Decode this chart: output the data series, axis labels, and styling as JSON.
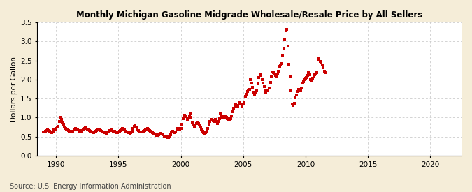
{
  "title": "Monthly Michigan Gasoline Midgrade Wholesale/Resale Price by All Sellers",
  "ylabel": "Dollars per Gallon",
  "source": "Source: U.S. Energy Information Administration",
  "bg_color": "#F5EDD8",
  "plot_bg_color": "#FFFFFF",
  "marker_color": "#CC0000",
  "grid_color": "#BBBBBB",
  "xlim": [
    1988.5,
    2022.5
  ],
  "ylim": [
    0.0,
    3.5
  ],
  "xticks": [
    1990,
    1995,
    2000,
    2005,
    2010,
    2015,
    2020
  ],
  "yticks": [
    0.0,
    0.5,
    1.0,
    1.5,
    2.0,
    2.5,
    3.0,
    3.5
  ],
  "data": [
    [
      1989.0,
      0.62
    ],
    [
      1989.08,
      0.63
    ],
    [
      1989.17,
      0.65
    ],
    [
      1989.25,
      0.67
    ],
    [
      1989.33,
      0.68
    ],
    [
      1989.42,
      0.66
    ],
    [
      1989.5,
      0.65
    ],
    [
      1989.58,
      0.62
    ],
    [
      1989.67,
      0.6
    ],
    [
      1989.75,
      0.63
    ],
    [
      1989.83,
      0.68
    ],
    [
      1989.92,
      0.7
    ],
    [
      1990.0,
      0.72
    ],
    [
      1990.08,
      0.75
    ],
    [
      1990.17,
      0.78
    ],
    [
      1990.25,
      0.9
    ],
    [
      1990.33,
      1.01
    ],
    [
      1990.42,
      0.95
    ],
    [
      1990.5,
      0.88
    ],
    [
      1990.58,
      0.82
    ],
    [
      1990.67,
      0.75
    ],
    [
      1990.75,
      0.72
    ],
    [
      1990.83,
      0.7
    ],
    [
      1990.92,
      0.68
    ],
    [
      1991.0,
      0.67
    ],
    [
      1991.08,
      0.65
    ],
    [
      1991.17,
      0.64
    ],
    [
      1991.25,
      0.63
    ],
    [
      1991.33,
      0.65
    ],
    [
      1991.42,
      0.68
    ],
    [
      1991.5,
      0.7
    ],
    [
      1991.58,
      0.71
    ],
    [
      1991.67,
      0.7
    ],
    [
      1991.75,
      0.68
    ],
    [
      1991.83,
      0.67
    ],
    [
      1991.92,
      0.65
    ],
    [
      1992.0,
      0.64
    ],
    [
      1992.08,
      0.66
    ],
    [
      1992.17,
      0.68
    ],
    [
      1992.25,
      0.72
    ],
    [
      1992.33,
      0.73
    ],
    [
      1992.42,
      0.71
    ],
    [
      1992.5,
      0.7
    ],
    [
      1992.58,
      0.68
    ],
    [
      1992.67,
      0.66
    ],
    [
      1992.75,
      0.65
    ],
    [
      1992.83,
      0.63
    ],
    [
      1992.92,
      0.62
    ],
    [
      1993.0,
      0.61
    ],
    [
      1993.08,
      0.62
    ],
    [
      1993.17,
      0.64
    ],
    [
      1993.25,
      0.67
    ],
    [
      1993.33,
      0.68
    ],
    [
      1993.42,
      0.69
    ],
    [
      1993.5,
      0.68
    ],
    [
      1993.58,
      0.66
    ],
    [
      1993.67,
      0.65
    ],
    [
      1993.75,
      0.63
    ],
    [
      1993.83,
      0.62
    ],
    [
      1993.92,
      0.6
    ],
    [
      1994.0,
      0.59
    ],
    [
      1994.08,
      0.6
    ],
    [
      1994.17,
      0.62
    ],
    [
      1994.25,
      0.65
    ],
    [
      1994.33,
      0.67
    ],
    [
      1994.42,
      0.68
    ],
    [
      1994.5,
      0.67
    ],
    [
      1994.58,
      0.65
    ],
    [
      1994.67,
      0.64
    ],
    [
      1994.75,
      0.62
    ],
    [
      1994.83,
      0.61
    ],
    [
      1994.92,
      0.6
    ],
    [
      1995.0,
      0.62
    ],
    [
      1995.08,
      0.64
    ],
    [
      1995.17,
      0.67
    ],
    [
      1995.25,
      0.7
    ],
    [
      1995.33,
      0.72
    ],
    [
      1995.42,
      0.7
    ],
    [
      1995.5,
      0.68
    ],
    [
      1995.58,
      0.65
    ],
    [
      1995.67,
      0.63
    ],
    [
      1995.75,
      0.62
    ],
    [
      1995.83,
      0.6
    ],
    [
      1995.92,
      0.59
    ],
    [
      1996.0,
      0.61
    ],
    [
      1996.08,
      0.65
    ],
    [
      1996.17,
      0.72
    ],
    [
      1996.25,
      0.78
    ],
    [
      1996.33,
      0.8
    ],
    [
      1996.42,
      0.75
    ],
    [
      1996.5,
      0.7
    ],
    [
      1996.58,
      0.66
    ],
    [
      1996.67,
      0.63
    ],
    [
      1996.75,
      0.62
    ],
    [
      1996.83,
      0.62
    ],
    [
      1996.92,
      0.63
    ],
    [
      1997.0,
      0.65
    ],
    [
      1997.08,
      0.67
    ],
    [
      1997.17,
      0.68
    ],
    [
      1997.25,
      0.7
    ],
    [
      1997.33,
      0.72
    ],
    [
      1997.42,
      0.7
    ],
    [
      1997.5,
      0.67
    ],
    [
      1997.58,
      0.65
    ],
    [
      1997.67,
      0.63
    ],
    [
      1997.75,
      0.61
    ],
    [
      1997.83,
      0.59
    ],
    [
      1997.92,
      0.57
    ],
    [
      1998.0,
      0.55
    ],
    [
      1998.08,
      0.54
    ],
    [
      1998.17,
      0.53
    ],
    [
      1998.25,
      0.55
    ],
    [
      1998.33,
      0.57
    ],
    [
      1998.42,
      0.58
    ],
    [
      1998.5,
      0.57
    ],
    [
      1998.58,
      0.55
    ],
    [
      1998.67,
      0.52
    ],
    [
      1998.75,
      0.5
    ],
    [
      1998.83,
      0.49
    ],
    [
      1998.92,
      0.48
    ],
    [
      1999.0,
      0.48
    ],
    [
      1999.08,
      0.5
    ],
    [
      1999.17,
      0.55
    ],
    [
      1999.25,
      0.62
    ],
    [
      1999.33,
      0.65
    ],
    [
      1999.42,
      0.63
    ],
    [
      1999.5,
      0.6
    ],
    [
      1999.58,
      0.62
    ],
    [
      1999.67,
      0.68
    ],
    [
      1999.75,
      0.72
    ],
    [
      1999.83,
      0.72
    ],
    [
      1999.92,
      0.68
    ],
    [
      2000.0,
      0.72
    ],
    [
      2000.08,
      0.82
    ],
    [
      2000.17,
      0.97
    ],
    [
      2000.25,
      1.05
    ],
    [
      2000.33,
      1.07
    ],
    [
      2000.42,
      1.02
    ],
    [
      2000.5,
      0.95
    ],
    [
      2000.58,
      0.98
    ],
    [
      2000.67,
      1.05
    ],
    [
      2000.75,
      1.1
    ],
    [
      2000.83,
      1.0
    ],
    [
      2000.92,
      0.88
    ],
    [
      2001.0,
      0.82
    ],
    [
      2001.08,
      0.78
    ],
    [
      2001.17,
      0.8
    ],
    [
      2001.25,
      0.85
    ],
    [
      2001.33,
      0.88
    ],
    [
      2001.42,
      0.85
    ],
    [
      2001.5,
      0.8
    ],
    [
      2001.58,
      0.75
    ],
    [
      2001.67,
      0.7
    ],
    [
      2001.75,
      0.65
    ],
    [
      2001.83,
      0.6
    ],
    [
      2001.92,
      0.58
    ],
    [
      2002.0,
      0.6
    ],
    [
      2002.08,
      0.65
    ],
    [
      2002.17,
      0.72
    ],
    [
      2002.25,
      0.82
    ],
    [
      2002.33,
      0.9
    ],
    [
      2002.42,
      0.95
    ],
    [
      2002.5,
      0.95
    ],
    [
      2002.58,
      0.92
    ],
    [
      2002.67,
      0.9
    ],
    [
      2002.75,
      0.95
    ],
    [
      2002.83,
      0.9
    ],
    [
      2002.92,
      0.85
    ],
    [
      2003.0,
      0.9
    ],
    [
      2003.08,
      0.98
    ],
    [
      2003.17,
      1.1
    ],
    [
      2003.25,
      1.05
    ],
    [
      2003.33,
      1.0
    ],
    [
      2003.42,
      1.0
    ],
    [
      2003.5,
      1.02
    ],
    [
      2003.58,
      1.05
    ],
    [
      2003.67,
      1.0
    ],
    [
      2003.75,
      0.97
    ],
    [
      2003.83,
      0.95
    ],
    [
      2003.92,
      0.95
    ],
    [
      2004.0,
      0.98
    ],
    [
      2004.08,
      1.05
    ],
    [
      2004.17,
      1.15
    ],
    [
      2004.25,
      1.25
    ],
    [
      2004.33,
      1.3
    ],
    [
      2004.42,
      1.35
    ],
    [
      2004.5,
      1.32
    ],
    [
      2004.58,
      1.28
    ],
    [
      2004.67,
      1.35
    ],
    [
      2004.75,
      1.4
    ],
    [
      2004.83,
      1.35
    ],
    [
      2004.92,
      1.28
    ],
    [
      2005.0,
      1.35
    ],
    [
      2005.08,
      1.4
    ],
    [
      2005.17,
      1.55
    ],
    [
      2005.25,
      1.62
    ],
    [
      2005.33,
      1.68
    ],
    [
      2005.42,
      1.72
    ],
    [
      2005.5,
      1.75
    ],
    [
      2005.58,
      2.0
    ],
    [
      2005.67,
      1.9
    ],
    [
      2005.75,
      1.8
    ],
    [
      2005.83,
      1.65
    ],
    [
      2005.92,
      1.62
    ],
    [
      2006.0,
      1.65
    ],
    [
      2006.08,
      1.7
    ],
    [
      2006.17,
      1.88
    ],
    [
      2006.25,
      2.05
    ],
    [
      2006.33,
      2.15
    ],
    [
      2006.42,
      2.1
    ],
    [
      2006.5,
      2.0
    ],
    [
      2006.58,
      1.9
    ],
    [
      2006.67,
      1.82
    ],
    [
      2006.75,
      1.72
    ],
    [
      2006.83,
      1.65
    ],
    [
      2006.92,
      1.7
    ],
    [
      2007.0,
      1.72
    ],
    [
      2007.08,
      1.78
    ],
    [
      2007.17,
      1.92
    ],
    [
      2007.25,
      2.08
    ],
    [
      2007.33,
      2.2
    ],
    [
      2007.42,
      2.18
    ],
    [
      2007.5,
      2.15
    ],
    [
      2007.58,
      2.1
    ],
    [
      2007.67,
      2.08
    ],
    [
      2007.75,
      2.15
    ],
    [
      2007.83,
      2.22
    ],
    [
      2007.92,
      2.35
    ],
    [
      2008.0,
      2.38
    ],
    [
      2008.08,
      2.42
    ],
    [
      2008.17,
      2.62
    ],
    [
      2008.25,
      2.8
    ],
    [
      2008.33,
      3.05
    ],
    [
      2008.42,
      3.28
    ],
    [
      2008.5,
      3.32
    ],
    [
      2008.58,
      2.88
    ],
    [
      2008.67,
      2.4
    ],
    [
      2008.75,
      2.08
    ],
    [
      2008.83,
      1.7
    ],
    [
      2008.92,
      1.35
    ],
    [
      2009.0,
      1.32
    ],
    [
      2009.08,
      1.38
    ],
    [
      2009.17,
      1.52
    ],
    [
      2009.25,
      1.6
    ],
    [
      2009.33,
      1.68
    ],
    [
      2009.42,
      1.75
    ],
    [
      2009.5,
      1.72
    ],
    [
      2009.58,
      1.7
    ],
    [
      2009.67,
      1.78
    ],
    [
      2009.75,
      1.9
    ],
    [
      2009.83,
      1.95
    ],
    [
      2009.92,
      2.0
    ],
    [
      2010.0,
      2.02
    ],
    [
      2010.08,
      2.05
    ],
    [
      2010.17,
      2.1
    ],
    [
      2010.25,
      2.18
    ],
    [
      2010.33,
      2.12
    ],
    [
      2010.42,
      2.0
    ],
    [
      2010.5,
      1.98
    ],
    [
      2010.58,
      2.02
    ],
    [
      2010.67,
      2.08
    ],
    [
      2010.75,
      2.12
    ],
    [
      2010.83,
      2.15
    ],
    [
      2010.92,
      2.18
    ],
    [
      2011.0,
      2.55
    ],
    [
      2011.08,
      2.52
    ],
    [
      2011.17,
      2.48
    ],
    [
      2011.25,
      2.45
    ],
    [
      2011.33,
      2.38
    ],
    [
      2011.42,
      2.3
    ],
    [
      2011.5,
      2.22
    ],
    [
      2011.58,
      2.18
    ]
  ]
}
